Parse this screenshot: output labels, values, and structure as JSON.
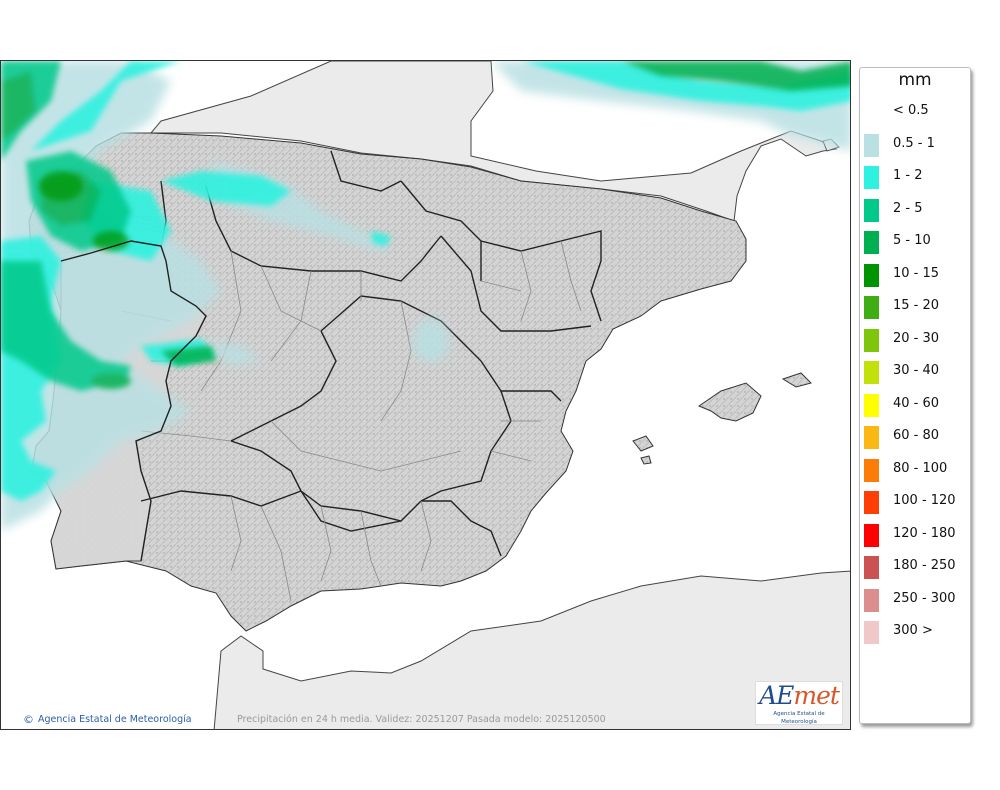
{
  "map": {
    "copyright": "Agencia Estatal de Meteorología",
    "caption": "Precipitación en 24 h media. Validez: 20251207 Pasada modelo: 2025120500",
    "logo": {
      "text_ae": "AE",
      "text_met": "met",
      "subtitle": "Agencia Estatal de Meteorología"
    }
  },
  "legend": {
    "unit": "mm",
    "classes": [
      {
        "label": "< 0.5",
        "color": "#ffffff"
      },
      {
        "label": "0.5 - 1",
        "color": "#b9e0e3"
      },
      {
        "label": "1 - 2",
        "color": "#2ff1df"
      },
      {
        "label": "2 - 5",
        "color": "#00c98a"
      },
      {
        "label": "5 - 10",
        "color": "#00b050"
      },
      {
        "label": "10 - 15",
        "color": "#009400"
      },
      {
        "label": "15 - 20",
        "color": "#3fae14"
      },
      {
        "label": "20 - 30",
        "color": "#7ec60c"
      },
      {
        "label": "30 - 40",
        "color": "#c2e00a"
      },
      {
        "label": "40 - 60",
        "color": "#ffff00"
      },
      {
        "label": "60 - 80",
        "color": "#fbb713"
      },
      {
        "label": "80 - 100",
        "color": "#fb7d07"
      },
      {
        "label": "100 - 120",
        "color": "#ff3e05"
      },
      {
        "label": "120 - 180",
        "color": "#ff0000"
      },
      {
        "label": "180 - 250",
        "color": "#cc5252"
      },
      {
        "label": "250 - 300",
        "color": "#dc8e8e"
      },
      {
        "label": "300 >",
        "color": "#f0c8c8"
      }
    ]
  },
  "colors": {
    "land": "#dcdcdc",
    "neighbour_land": "#ebebeb",
    "sea": "#ffffff",
    "border": "#222222"
  }
}
